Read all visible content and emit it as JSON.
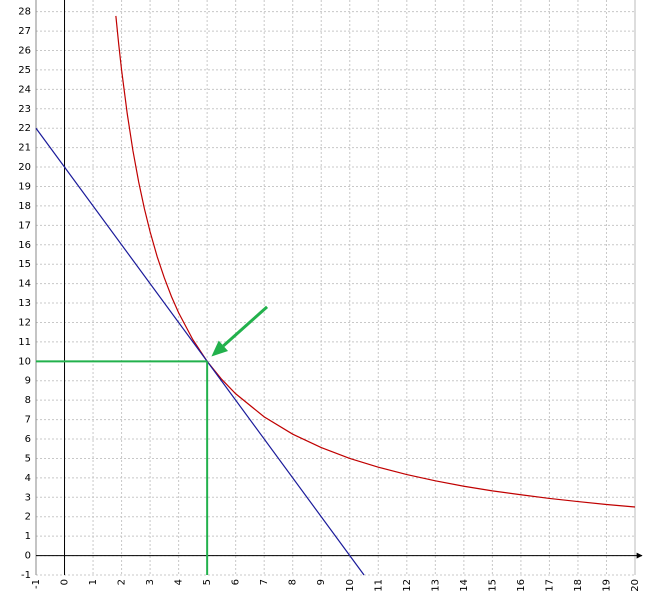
{
  "chart_data": {
    "type": "line",
    "xlim": [
      -1,
      20
    ],
    "ylim": [
      -1,
      28.6
    ],
    "xticks": [
      -1,
      0,
      1,
      2,
      3,
      4,
      5,
      6,
      7,
      8,
      9,
      10,
      11,
      12,
      13,
      14,
      15,
      16,
      17,
      18,
      19,
      20
    ],
    "yticks": [
      -1,
      0,
      1,
      2,
      3,
      4,
      5,
      6,
      7,
      8,
      9,
      10,
      11,
      12,
      13,
      14,
      15,
      16,
      17,
      18,
      19,
      20,
      21,
      22,
      23,
      24,
      25,
      26,
      27,
      28
    ],
    "grid": true,
    "series": [
      {
        "color": "#c00000",
        "x": [
          1.8,
          1.9,
          2,
          2.2,
          2.4,
          2.6,
          2.8,
          3,
          3.25,
          3.5,
          3.75,
          4,
          4.5,
          5,
          5.5,
          6,
          7,
          8,
          9,
          10,
          11,
          12,
          13,
          14,
          15,
          16,
          17,
          18,
          19,
          20
        ],
        "values": [
          27.78,
          26.32,
          25,
          22.73,
          20.83,
          19.23,
          17.86,
          16.67,
          15.38,
          14.29,
          13.33,
          12.5,
          11.11,
          10,
          9.09,
          8.33,
          7.14,
          6.25,
          5.56,
          5,
          4.55,
          4.17,
          3.85,
          3.57,
          3.33,
          3.13,
          2.94,
          2.78,
          2.63,
          2.5
        ]
      },
      {
        "color": "#1a1a9a",
        "x": [
          -1,
          10.5
        ],
        "values": [
          22,
          -1
        ]
      },
      {
        "color": "#22b14c",
        "x": [
          -1,
          5
        ],
        "values": [
          10,
          10
        ]
      },
      {
        "color": "#22b14c",
        "x": [
          5,
          5
        ],
        "values": [
          -1,
          10
        ]
      }
    ],
    "annotations": [
      {
        "type": "arrow",
        "color": "#22b14c",
        "x": [
          7.1,
          5.15
        ],
        "y": [
          12.8,
          10.25
        ]
      }
    ]
  }
}
